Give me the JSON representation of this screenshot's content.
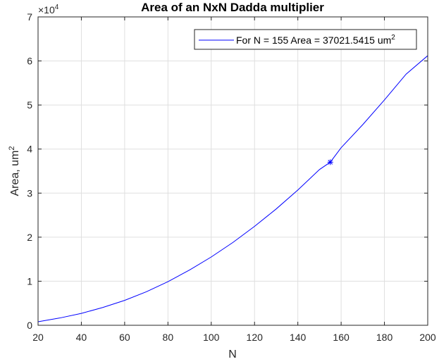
{
  "chart_data": {
    "type": "line",
    "title": "Area of an NxN Dadda multiplier",
    "xlabel": "N",
    "ylabel_base": "Area, um",
    "ylabel_sup": "2",
    "xlim": [
      20,
      200
    ],
    "ylim": [
      0,
      70000
    ],
    "xticks": [
      20,
      40,
      60,
      80,
      100,
      120,
      140,
      160,
      180,
      200
    ],
    "yticks": [
      0,
      10000,
      20000,
      30000,
      40000,
      50000,
      60000,
      70000
    ],
    "ytick_labels": [
      "0",
      "1",
      "2",
      "3",
      "4",
      "5",
      "6",
      "7"
    ],
    "exponent_base": "×10",
    "exponent_power": "4",
    "grid": true,
    "legend_position": "top-right",
    "series": [
      {
        "name_base": "For N = 155 Area = 37021.5415 um",
        "name_sup": "2",
        "color": "#0000ff",
        "x": [
          20,
          30,
          40,
          50,
          60,
          70,
          80,
          90,
          100,
          110,
          120,
          130,
          140,
          150,
          155,
          160,
          170,
          180,
          190,
          200
        ],
        "y": [
          800,
          1650,
          2700,
          4050,
          5650,
          7600,
          9900,
          12550,
          15500,
          18800,
          22450,
          26400,
          30700,
          35350,
          37021.5415,
          40300,
          45550,
          51150,
          57000,
          61200
        ]
      }
    ],
    "marker": {
      "x": 155,
      "y": 37021.5415,
      "symbol": "*",
      "color": "#0000ff"
    }
  }
}
